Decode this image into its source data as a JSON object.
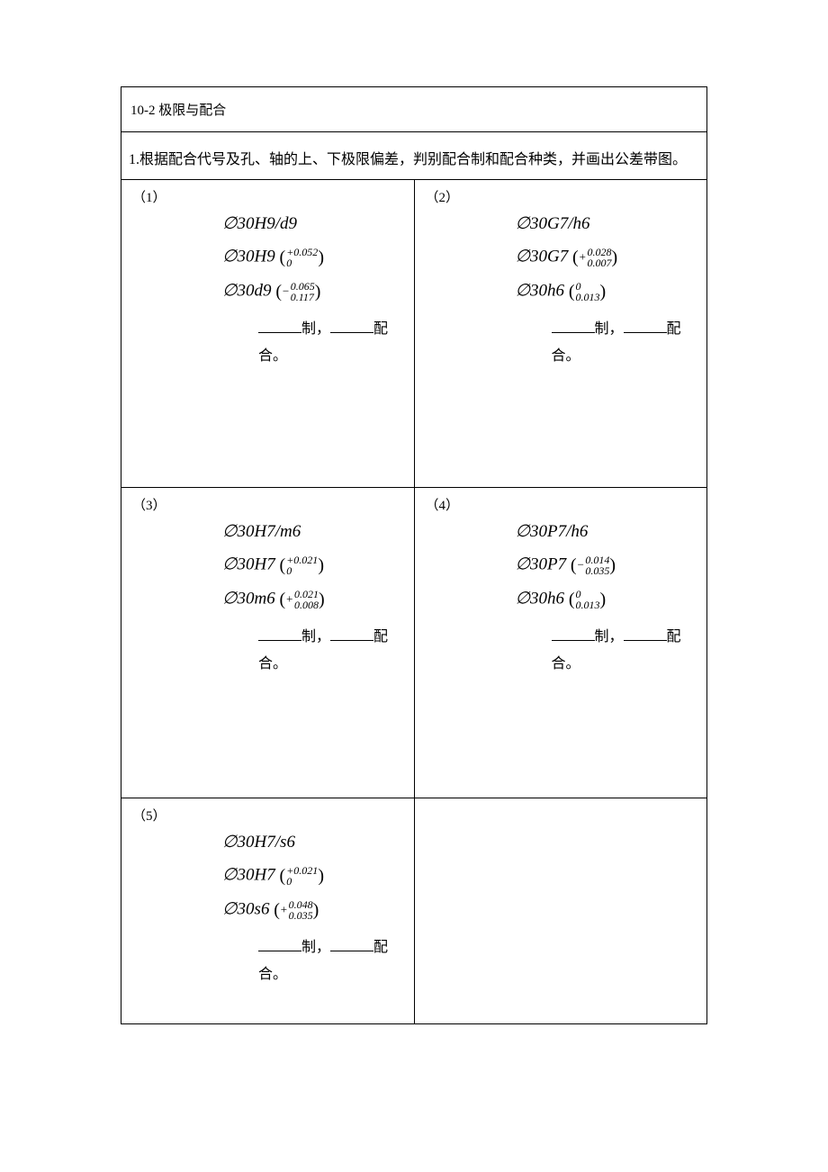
{
  "header": {
    "section_number": "10-2",
    "section_title": "极限与配合"
  },
  "instruction": "1.根据配合代号及孔、轴的上、下极限偏差，判别配合制和配合种类，并画出公差带图。",
  "cells": [
    {
      "idx": "（1）",
      "fit_designation": "∅30H9/d9",
      "hole_designation": "∅30H9",
      "hole_upper": "+0.052",
      "hole_lower": "0",
      "shaft_designation": "∅30d9",
      "shaft_upper": "0.065",
      "shaft_lower": "0.117",
      "shaft_sign": "−",
      "fill_text_1": "制，",
      "fill_text_2": "配合。"
    },
    {
      "idx": "（2）",
      "fit_designation": "∅30G7/h6",
      "hole_designation": "∅30G7",
      "hole_upper": "0.028",
      "hole_lower": "0.007",
      "hole_sign": "+",
      "shaft_designation": "∅30h6",
      "shaft_upper": "0",
      "shaft_lower": "0.013",
      "fill_text_1": "制，",
      "fill_text_2": "配合。"
    },
    {
      "idx": "（3）",
      "fit_designation": "∅30H7/m6",
      "hole_designation": "∅30H7",
      "hole_upper": "+0.021",
      "hole_lower": "0",
      "shaft_designation": "∅30m6",
      "shaft_upper": "0.021",
      "shaft_lower": "0.008",
      "shaft_sign": "+",
      "fill_text_1": "制，",
      "fill_text_2": "配合。"
    },
    {
      "idx": "（4）",
      "fit_designation": "∅30P7/h6",
      "hole_designation": "∅30P7",
      "hole_upper": "0.014",
      "hole_lower": "0.035",
      "hole_sign": "−",
      "shaft_designation": "∅30h6",
      "shaft_upper": "0",
      "shaft_lower": "0.013",
      "fill_text_1": "制，",
      "fill_text_2": "配合。"
    },
    {
      "idx": "（5）",
      "fit_designation": "∅30H7/s6",
      "hole_designation": "∅30H7",
      "hole_upper": "+0.021",
      "hole_lower": "0",
      "shaft_designation": "∅30s6",
      "shaft_upper": "0.048",
      "shaft_lower": "0.035",
      "shaft_sign": "+",
      "fill_text_1": "制，",
      "fill_text_2": "配合。"
    }
  ]
}
